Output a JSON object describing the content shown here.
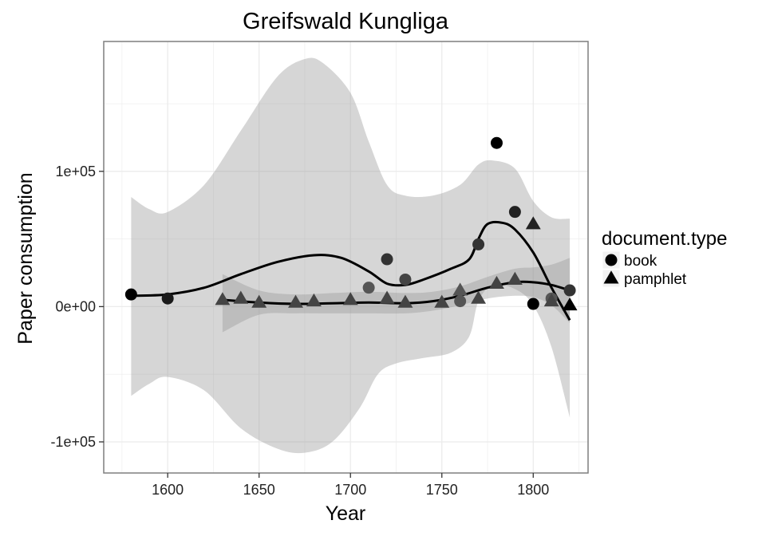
{
  "chart_data": {
    "type": "scatter",
    "title": "Greifswald Kungliga",
    "xlabel": "Year",
    "ylabel": "Paper consumption",
    "xlim": [
      1565,
      1830
    ],
    "ylim": [
      -123000,
      196000
    ],
    "x_ticks": [
      1600,
      1650,
      1700,
      1750,
      1800
    ],
    "y_ticks": [
      {
        "value": -100000,
        "label": "-1e+05"
      },
      {
        "value": 0,
        "label": "0e+00"
      },
      {
        "value": 100000,
        "label": "1e+05"
      }
    ],
    "grid": true,
    "legend": {
      "title": "document.type",
      "position": "right",
      "entries": [
        {
          "label": "book",
          "shape": "circle"
        },
        {
          "label": "pamphlet",
          "shape": "triangle"
        }
      ]
    },
    "series": [
      {
        "name": "book",
        "shape": "circle",
        "points": [
          {
            "x": 1580,
            "y": 9000,
            "color": "#000000"
          },
          {
            "x": 1600,
            "y": 6000,
            "color": "#1a1a1a"
          },
          {
            "x": 1710,
            "y": 14000,
            "color": "#555555"
          },
          {
            "x": 1720,
            "y": 35000,
            "color": "#333333"
          },
          {
            "x": 1730,
            "y": 20000,
            "color": "#444444"
          },
          {
            "x": 1760,
            "y": 4000,
            "color": "#555555"
          },
          {
            "x": 1770,
            "y": 46000,
            "color": "#333333"
          },
          {
            "x": 1780,
            "y": 121000,
            "color": "#000000"
          },
          {
            "x": 1790,
            "y": 70000,
            "color": "#222222"
          },
          {
            "x": 1800,
            "y": 2000,
            "color": "#000000"
          },
          {
            "x": 1810,
            "y": 6000,
            "color": "#555555"
          },
          {
            "x": 1820,
            "y": 12000,
            "color": "#333333"
          }
        ],
        "smooth": [
          {
            "x": 1580,
            "y": 8000
          },
          {
            "x": 1600,
            "y": 9000
          },
          {
            "x": 1620,
            "y": 14000
          },
          {
            "x": 1640,
            "y": 24000
          },
          {
            "x": 1660,
            "y": 33000
          },
          {
            "x": 1680,
            "y": 38000
          },
          {
            "x": 1695,
            "y": 36000
          },
          {
            "x": 1710,
            "y": 26000
          },
          {
            "x": 1720,
            "y": 17000
          },
          {
            "x": 1730,
            "y": 16000
          },
          {
            "x": 1740,
            "y": 20000
          },
          {
            "x": 1755,
            "y": 28000
          },
          {
            "x": 1765,
            "y": 35000
          },
          {
            "x": 1770,
            "y": 50000
          },
          {
            "x": 1775,
            "y": 61000
          },
          {
            "x": 1783,
            "y": 62000
          },
          {
            "x": 1790,
            "y": 57000
          },
          {
            "x": 1800,
            "y": 40000
          },
          {
            "x": 1810,
            "y": 14000
          },
          {
            "x": 1820,
            "y": -10000
          }
        ],
        "band_upper": [
          {
            "x": 1580,
            "y": 81000
          },
          {
            "x": 1590,
            "y": 72000
          },
          {
            "x": 1600,
            "y": 70000
          },
          {
            "x": 1620,
            "y": 90000
          },
          {
            "x": 1640,
            "y": 130000
          },
          {
            "x": 1660,
            "y": 170000
          },
          {
            "x": 1675,
            "y": 183000
          },
          {
            "x": 1685,
            "y": 180000
          },
          {
            "x": 1700,
            "y": 158000
          },
          {
            "x": 1710,
            "y": 122000
          },
          {
            "x": 1720,
            "y": 90000
          },
          {
            "x": 1730,
            "y": 82000
          },
          {
            "x": 1745,
            "y": 82000
          },
          {
            "x": 1760,
            "y": 90000
          },
          {
            "x": 1770,
            "y": 105000
          },
          {
            "x": 1778,
            "y": 108000
          },
          {
            "x": 1790,
            "y": 102000
          },
          {
            "x": 1800,
            "y": 78000
          },
          {
            "x": 1810,
            "y": 66000
          },
          {
            "x": 1820,
            "y": 65000
          }
        ],
        "band_lower": [
          {
            "x": 1580,
            "y": -66000
          },
          {
            "x": 1590,
            "y": -57000
          },
          {
            "x": 1600,
            "y": -52000
          },
          {
            "x": 1620,
            "y": -62000
          },
          {
            "x": 1640,
            "y": -90000
          },
          {
            "x": 1660,
            "y": -105000
          },
          {
            "x": 1675,
            "y": -108000
          },
          {
            "x": 1690,
            "y": -100000
          },
          {
            "x": 1705,
            "y": -75000
          },
          {
            "x": 1715,
            "y": -50000
          },
          {
            "x": 1725,
            "y": -42000
          },
          {
            "x": 1740,
            "y": -38000
          },
          {
            "x": 1755,
            "y": -34000
          },
          {
            "x": 1765,
            "y": -22000
          },
          {
            "x": 1770,
            "y": 4000
          },
          {
            "x": 1778,
            "y": 16000
          },
          {
            "x": 1790,
            "y": 13000
          },
          {
            "x": 1800,
            "y": 1000
          },
          {
            "x": 1810,
            "y": -30000
          },
          {
            "x": 1820,
            "y": -82000
          }
        ]
      },
      {
        "name": "pamphlet",
        "shape": "triangle",
        "points": [
          {
            "x": 1630,
            "y": 5000,
            "color": "#444444"
          },
          {
            "x": 1640,
            "y": 6000,
            "color": "#444444"
          },
          {
            "x": 1650,
            "y": 3000,
            "color": "#444444"
          },
          {
            "x": 1670,
            "y": 3000,
            "color": "#444444"
          },
          {
            "x": 1680,
            "y": 4000,
            "color": "#444444"
          },
          {
            "x": 1700,
            "y": 5000,
            "color": "#444444"
          },
          {
            "x": 1720,
            "y": 6000,
            "color": "#444444"
          },
          {
            "x": 1730,
            "y": 3000,
            "color": "#444444"
          },
          {
            "x": 1750,
            "y": 3000,
            "color": "#444444"
          },
          {
            "x": 1760,
            "y": 12000,
            "color": "#555555"
          },
          {
            "x": 1770,
            "y": 6000,
            "color": "#444444"
          },
          {
            "x": 1780,
            "y": 17000,
            "color": "#444444"
          },
          {
            "x": 1790,
            "y": 20000,
            "color": "#444444"
          },
          {
            "x": 1800,
            "y": 61000,
            "color": "#222222"
          },
          {
            "x": 1810,
            "y": 4000,
            "color": "#444444"
          },
          {
            "x": 1820,
            "y": 1000,
            "color": "#000000"
          }
        ],
        "smooth": [
          {
            "x": 1630,
            "y": 5000
          },
          {
            "x": 1650,
            "y": 3000
          },
          {
            "x": 1670,
            "y": 2000
          },
          {
            "x": 1690,
            "y": 2500
          },
          {
            "x": 1710,
            "y": 3000
          },
          {
            "x": 1730,
            "y": 2500
          },
          {
            "x": 1745,
            "y": 4000
          },
          {
            "x": 1760,
            "y": 8000
          },
          {
            "x": 1775,
            "y": 14000
          },
          {
            "x": 1790,
            "y": 18000
          },
          {
            "x": 1800,
            "y": 18000
          },
          {
            "x": 1810,
            "y": 16000
          },
          {
            "x": 1820,
            "y": 12000
          }
        ],
        "band_upper": [
          {
            "x": 1630,
            "y": 24000
          },
          {
            "x": 1650,
            "y": 12000
          },
          {
            "x": 1670,
            "y": 9000
          },
          {
            "x": 1690,
            "y": 10000
          },
          {
            "x": 1710,
            "y": 11000
          },
          {
            "x": 1730,
            "y": 10000
          },
          {
            "x": 1745,
            "y": 11000
          },
          {
            "x": 1760,
            "y": 15000
          },
          {
            "x": 1775,
            "y": 22000
          },
          {
            "x": 1790,
            "y": 28000
          },
          {
            "x": 1800,
            "y": 29000
          },
          {
            "x": 1810,
            "y": 31000
          },
          {
            "x": 1820,
            "y": 36000
          }
        ],
        "band_lower": [
          {
            "x": 1630,
            "y": -19000
          },
          {
            "x": 1650,
            "y": -6000
          },
          {
            "x": 1670,
            "y": -5000
          },
          {
            "x": 1690,
            "y": -5000
          },
          {
            "x": 1710,
            "y": -5000
          },
          {
            "x": 1730,
            "y": -5000
          },
          {
            "x": 1745,
            "y": -3000
          },
          {
            "x": 1760,
            "y": 1000
          },
          {
            "x": 1775,
            "y": 6000
          },
          {
            "x": 1790,
            "y": 8000
          },
          {
            "x": 1800,
            "y": 7000
          },
          {
            "x": 1810,
            "y": 1000
          },
          {
            "x": 1820,
            "y": -12000
          }
        ]
      }
    ]
  },
  "colors": {
    "panel_background": "#ffffff",
    "grid": "#ebebeb",
    "panel_border": "#7f7f7f",
    "band_fill": "#999999",
    "smooth_line": "#000000"
  }
}
